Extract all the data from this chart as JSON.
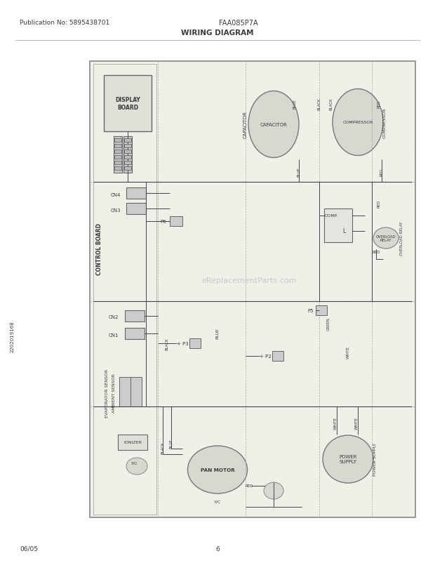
{
  "page_width": 6.2,
  "page_height": 8.03,
  "dpi": 100,
  "bg_color": "#ffffff",
  "header_pub_no": "Publication No: 5895438701",
  "header_model": "FAA085P7A",
  "header_title": "WIRING DIAGRAM",
  "footer_date": "06/05",
  "footer_page": "6",
  "side_code": "2202019168",
  "watermark": "eReplacementParts.com",
  "text_color": "#3a3a3a",
  "line_color": "#555555",
  "diagram_bg": "#f0efe8",
  "diagram_border": "#888888",
  "component_fill": "#ddddd5",
  "component_edge": "#777777",
  "connector_fill": "#cccccc",
  "connector_edge": "#666666",
  "wire_color": "#444444",
  "label_color": "#2a2a2a",
  "divider_color": "#aaaaaa",
  "scan_noise": true,
  "DL": 128,
  "DR": 592,
  "DT": 738,
  "DB": 88
}
